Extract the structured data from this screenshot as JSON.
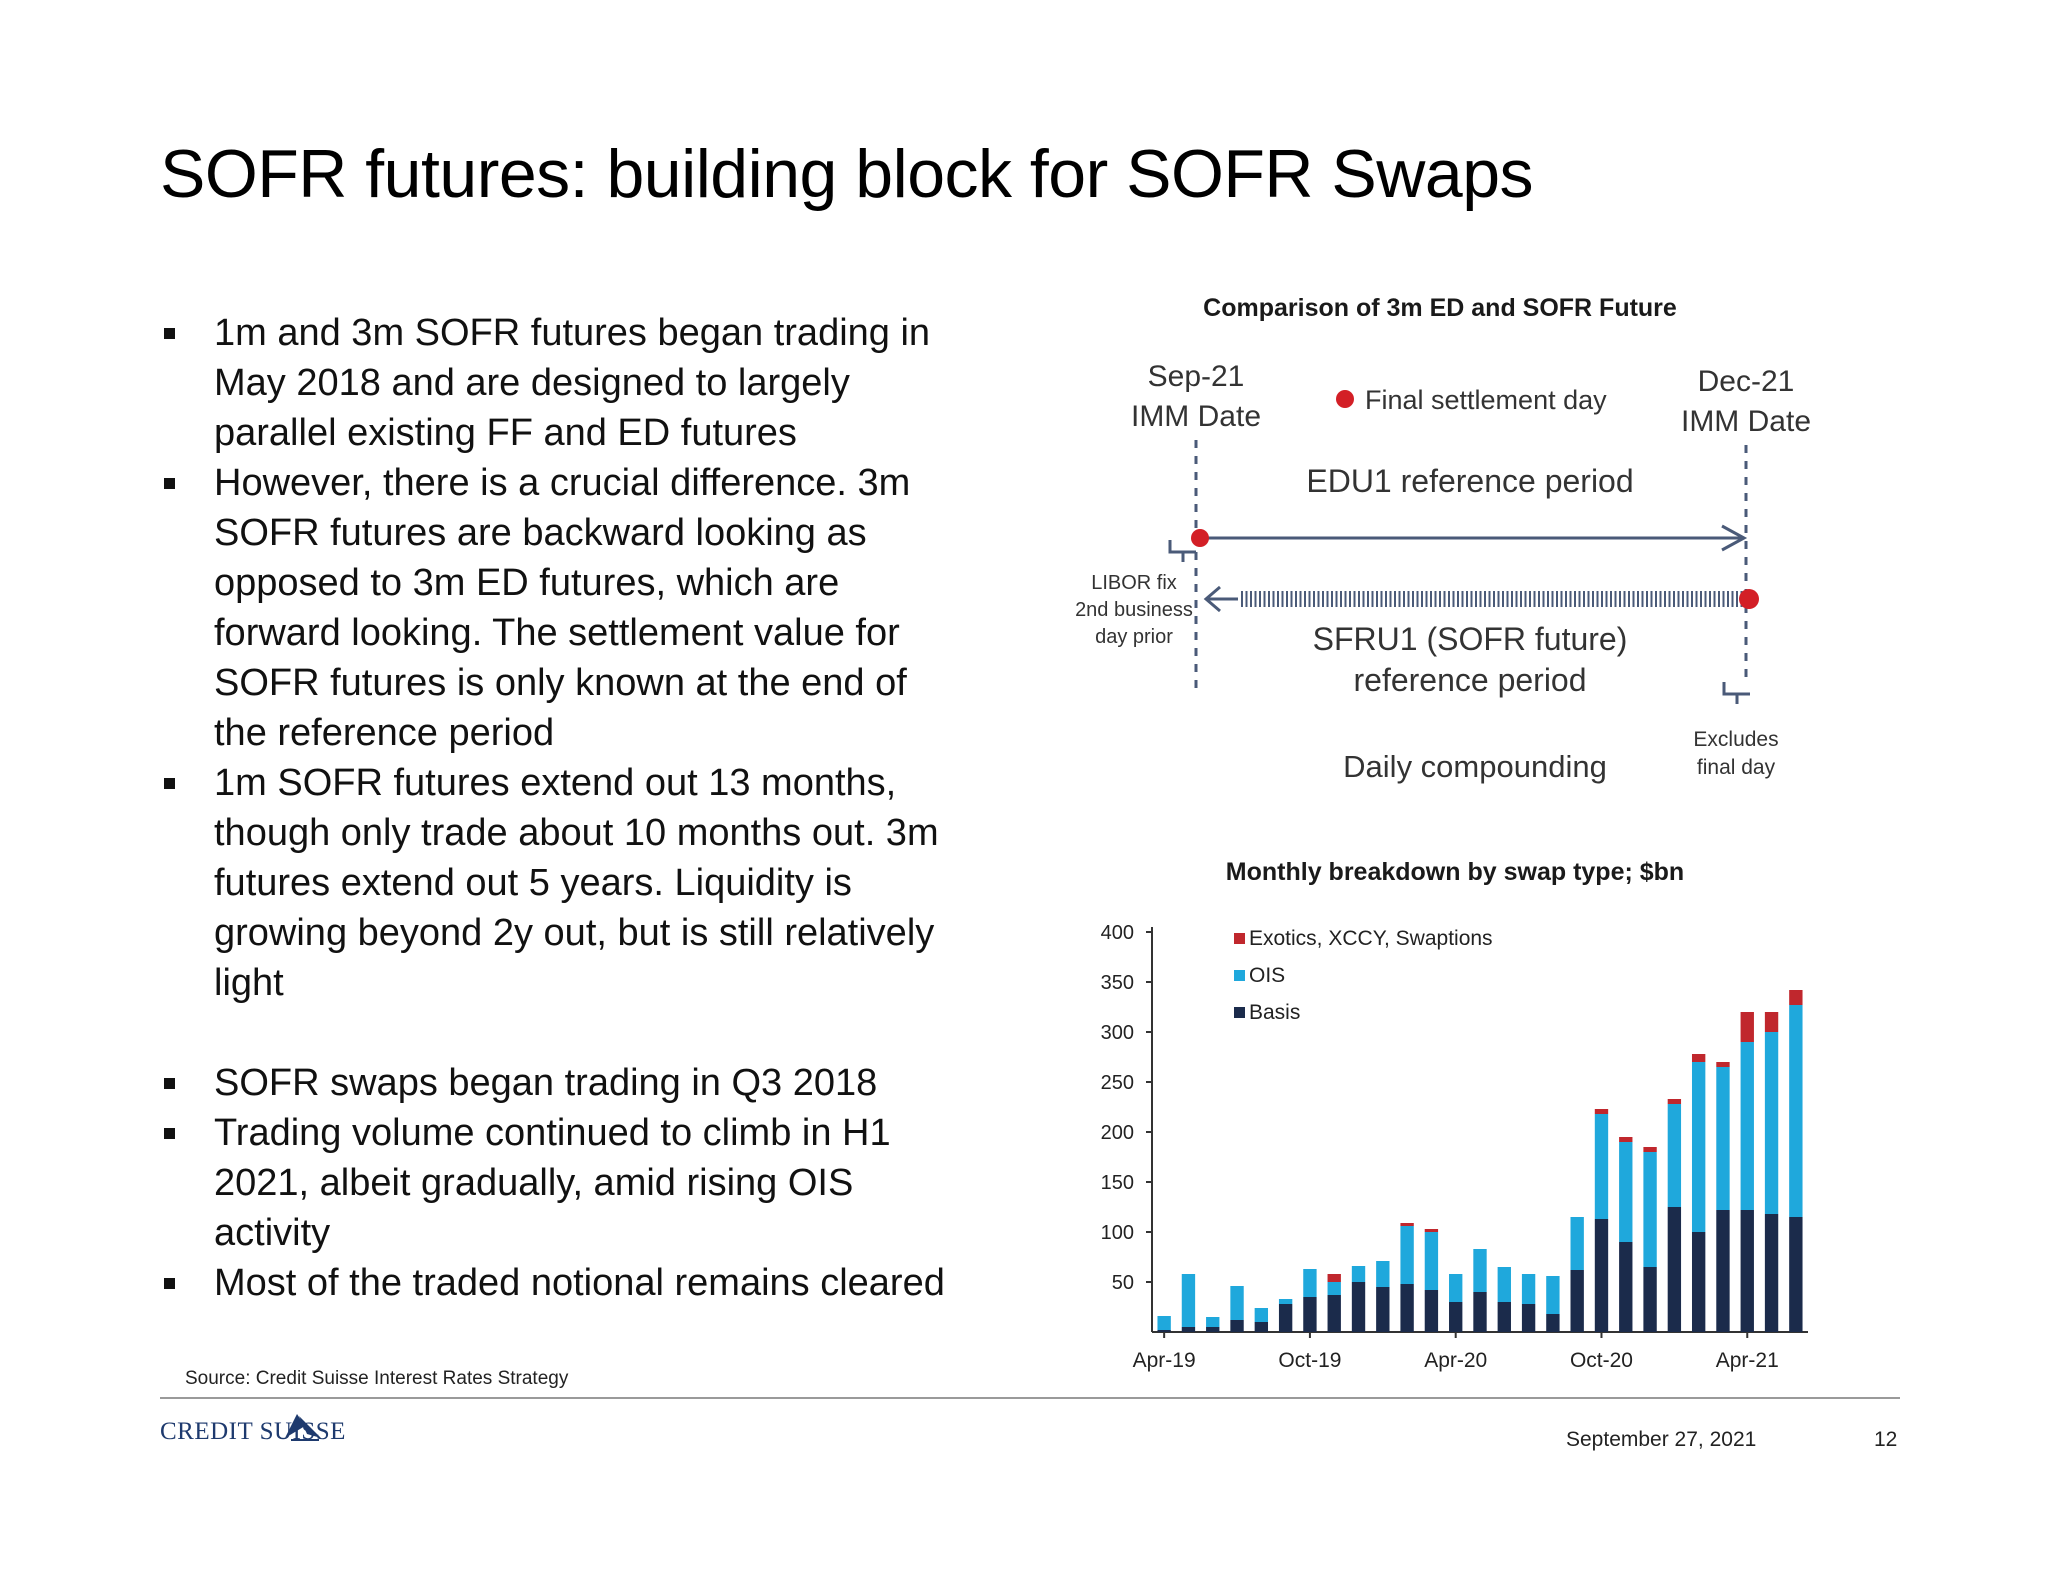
{
  "slide": {
    "title": "SOFR futures: building block for SOFR Swaps",
    "bullets": [
      {
        "text": "1m and 3m SOFR futures began trading in May 2018 and are designed to largely parallel existing FF and ED futures",
        "lines": [
          "1m and 3m SOFR futures began trading in",
          "May 2018 and are designed to largely",
          "parallel existing FF and ED futures"
        ]
      },
      {
        "text": "However, there is a crucial difference. 3m SOFR futures are backward looking as opposed to 3m ED futures, which are forward looking. The settlement value for SOFR futures is only known at the end of the reference period",
        "lines": [
          "However, there is a crucial difference. 3m",
          "SOFR futures are backward looking as",
          "opposed to 3m ED futures, which are",
          "forward looking. The settlement value for",
          "SOFR futures is only known at the end of",
          "the reference period"
        ]
      },
      {
        "text": "1m SOFR futures extend out 13 months, though only trade about 10 months out. 3m futures extend out 5 years. Liquidity is growing beyond 2y out, but is still relatively light",
        "lines": [
          "1m SOFR futures extend out 13 months,",
          "though only trade about 10 months out. 3m",
          "futures extend out 5 years. Liquidity is",
          "growing beyond 2y out, but is still relatively",
          "light"
        ]
      },
      {
        "text": "SOFR swaps began trading in Q3 2018",
        "lines": [
          "SOFR swaps began trading in Q3 2018"
        ]
      },
      {
        "text": "Trading volume continued to climb in H1 2021, albeit gradually, amid rising OIS activity",
        "lines": [
          "Trading volume continued to climb in H1",
          "2021, albeit gradually, amid rising OIS",
          "activity"
        ]
      },
      {
        "text": "Most of the traded notional remains cleared",
        "lines": [
          "Most of the traded notional remains cleared"
        ]
      }
    ],
    "source": "Source: Credit Suisse Interest Rates Strategy",
    "date": "September 27, 2021",
    "page_number": "12",
    "logo_text": "CREDIT SUISSE"
  },
  "diagram": {
    "title": "Comparison of 3m ED and SOFR Future",
    "left_date": "Sep-21",
    "left_date_sub": "IMM Date",
    "right_date": "Dec-21",
    "right_date_sub": "IMM Date",
    "legend_label": "Final settlement day",
    "edu_label": "EDU1 reference period",
    "libor_lines": [
      "LIBOR fix",
      "2nd business",
      "day prior"
    ],
    "sfru_label_1": "SFRU1 (SOFR future)",
    "sfru_label_2": "reference period",
    "excludes_lines": [
      "Excludes",
      "final day"
    ],
    "daily_label": "Daily compounding",
    "accent_color": "#d31f26",
    "line_color": "#4a5a78"
  },
  "chart_data": {
    "type": "bar",
    "title": "Monthly breakdown by swap type; $bn",
    "xlabel": "",
    "ylabel": "",
    "ylim": [
      0,
      400
    ],
    "yticks": [
      50,
      100,
      150,
      200,
      250,
      300,
      350,
      400
    ],
    "categories": [
      "Apr-19",
      "May-19",
      "Jun-19",
      "Jul-19",
      "Aug-19",
      "Sep-19",
      "Oct-19",
      "Nov-19",
      "Dec-19",
      "Jan-20",
      "Feb-20",
      "Mar-20",
      "Apr-20",
      "May-20",
      "Jun-20",
      "Jul-20",
      "Aug-20",
      "Sep-20",
      "Oct-20",
      "Nov-20",
      "Dec-20",
      "Jan-21",
      "Feb-21",
      "Mar-21",
      "Apr-21",
      "May-21",
      "Jun-21"
    ],
    "tick_labels": [
      "Apr-19",
      "Oct-19",
      "Apr-20",
      "Oct-20",
      "Apr-21"
    ],
    "stacked": true,
    "legend_position": "top-left",
    "series": [
      {
        "name": "Basis",
        "color": "#1b2b4b",
        "values": [
          2,
          5,
          5,
          12,
          10,
          28,
          35,
          37,
          50,
          45,
          48,
          42,
          30,
          40,
          30,
          28,
          18,
          62,
          113,
          90,
          65,
          125,
          100,
          122,
          122,
          118,
          115
        ]
      },
      {
        "name": "OIS",
        "color": "#1fa8dc",
        "values": [
          14,
          53,
          10,
          34,
          14,
          5,
          28,
          13,
          16,
          26,
          58,
          58,
          28,
          43,
          35,
          30,
          38,
          53,
          105,
          100,
          115,
          103,
          170,
          143,
          168,
          182,
          212
        ]
      },
      {
        "name": "Exotics, XCCY, Swaptions",
        "color": "#c0272d",
        "values": [
          0,
          0,
          0,
          0,
          0,
          0,
          0,
          8,
          0,
          0,
          3,
          3,
          0,
          0,
          0,
          0,
          0,
          0,
          5,
          5,
          5,
          5,
          8,
          5,
          30,
          20,
          15
        ]
      }
    ]
  }
}
